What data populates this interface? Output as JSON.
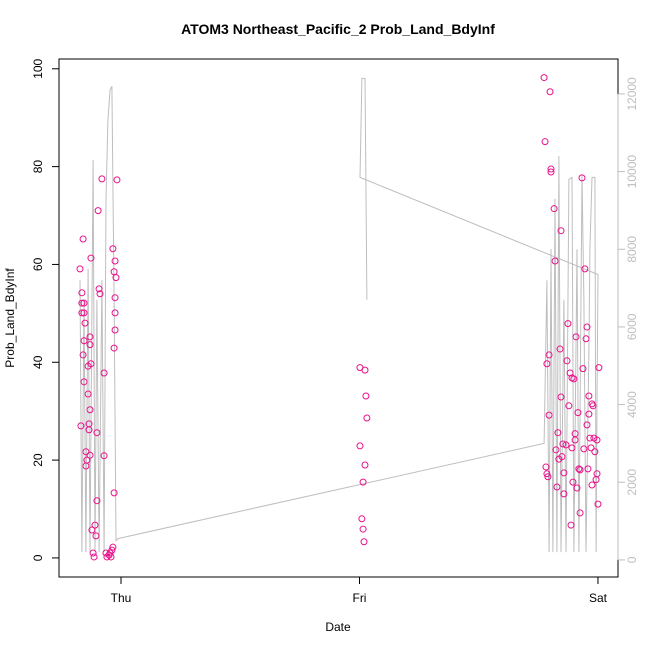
{
  "chart_data": {
    "type": "scatter",
    "title": "ATOM3 Northeast_Pacific_2 Prob_Land_BdyInf",
    "xlabel": "Date",
    "ylabel": "Prob_Land_BdyInf",
    "xlim": [
      -0.26,
      2.084
    ],
    "ylim": [
      -3.9,
      102
    ],
    "y2lim": [
      -440,
      12900
    ],
    "xticks": [
      {
        "value": 0,
        "label": "Thu"
      },
      {
        "value": 1,
        "label": "Fri"
      },
      {
        "value": 2,
        "label": "Sat"
      }
    ],
    "yticks": [
      0,
      20,
      40,
      60,
      80,
      100
    ],
    "y2ticks": [
      0,
      2000,
      4000,
      6000,
      8000,
      10000,
      12000
    ],
    "grid": false,
    "series": [
      {
        "type": "scatter",
        "color": "#e8128c",
        "x": [
          -0.172,
          -0.168,
          -0.164,
          -0.159,
          -0.164,
          -0.155,
          -0.155,
          -0.164,
          -0.159,
          -0.155,
          -0.155,
          -0.151,
          -0.147,
          -0.147,
          -0.143,
          -0.138,
          -0.138,
          -0.134,
          -0.134,
          -0.13,
          -0.13,
          -0.13,
          -0.13,
          -0.126,
          -0.126,
          -0.122,
          -0.117,
          -0.113,
          -0.109,
          -0.105,
          -0.101,
          -0.101,
          -0.096,
          -0.092,
          -0.088,
          -0.08,
          -0.071,
          -0.071,
          -0.063,
          -0.059,
          -0.05,
          -0.046,
          -0.042,
          -0.038,
          -0.034,
          -0.029,
          -0.034,
          -0.025,
          -0.029,
          -0.021,
          -0.025,
          -0.025,
          -0.025,
          -0.029,
          -0.017,
          1.002,
          1.015,
          1.01,
          1.015,
          1.019,
          1.023,
          1.027,
          1.031,
          1.023,
          1.002,
          1.774,
          1.778,
          1.799,
          1.803,
          1.803,
          1.816,
          1.82,
          1.786,
          1.795,
          1.795,
          1.782,
          1.786,
          1.79,
          1.824,
          1.828,
          1.832,
          1.836,
          1.841,
          1.845,
          1.845,
          1.849,
          1.853,
          1.857,
          1.857,
          1.866,
          1.87,
          1.874,
          1.878,
          1.883,
          1.887,
          1.891,
          1.891,
          1.895,
          1.899,
          1.904,
          1.904,
          1.908,
          1.912,
          1.916,
          1.92,
          1.925,
          1.925,
          1.933,
          1.937,
          1.941,
          1.945,
          1.95,
          1.954,
          1.958,
          1.962,
          1.962,
          1.966,
          1.971,
          1.975,
          1.975,
          1.979,
          1.983,
          1.987,
          1.992,
          1.996,
          2.0,
          2.004,
          1.996,
          1.954
        ],
        "values": [
          59.1,
          27,
          54.2,
          65.2,
          52.1,
          52.1,
          50.1,
          50.1,
          41.5,
          44.4,
          36,
          48,
          21.7,
          18.8,
          20,
          39.2,
          33.5,
          26.2,
          27.4,
          30.3,
          21,
          45.2,
          43.6,
          39.7,
          61.3,
          5.7,
          1,
          0.2,
          6.7,
          4.5,
          11.7,
          25.6,
          71,
          55,
          54,
          77.5,
          37.8,
          20.9,
          1,
          0.2,
          0.6,
          1,
          0.2,
          1.6,
          2.2,
          13.3,
          63.2,
          60.7,
          58.5,
          57.3,
          53.2,
          50.1,
          46.6,
          42.9,
          77.3,
          38.9,
          15.5,
          8,
          5.9,
          3.3,
          38.4,
          33.1,
          28.6,
          19,
          22.9,
          98.2,
          85.1,
          95.3,
          79.5,
          78.9,
          71.4,
          60.7,
          39.7,
          41.5,
          29.2,
          18.6,
          17.2,
          16.6,
          22.1,
          14.5,
          25.6,
          20.2,
          42.7,
          66.9,
          32.9,
          20.7,
          23.3,
          17.4,
          13.1,
          23.1,
          40.3,
          47.9,
          31.1,
          37.8,
          6.7,
          36.8,
          22.5,
          15.5,
          36.6,
          25.4,
          24.1,
          45.2,
          14.3,
          29.7,
          18.2,
          9.2,
          18,
          77.7,
          38.7,
          22.3,
          59.1,
          44.8,
          27.2,
          18.2,
          33.1,
          29.4,
          24.5,
          22.5,
          14.9,
          31.5,
          31.1,
          24.5,
          21.7,
          16,
          17.2,
          11,
          38.9,
          24.1,
          47.2
        ]
      },
      {
        "type": "line",
        "axis": "y2",
        "color": "#bebebe",
        "x": [
          -0.172,
          -0.164,
          -0.155,
          -0.147,
          -0.138,
          -0.13,
          -0.117,
          -0.109,
          -0.101,
          -0.092,
          -0.08,
          -0.071,
          -0.063,
          -0.055,
          -0.046,
          -0.038,
          -0.029,
          -0.021,
          -0.013,
          1.774,
          1.786,
          1.795,
          1.803,
          1.811,
          1.82,
          1.828,
          1.836,
          1.845,
          1.857,
          1.866,
          1.878,
          1.891,
          1.899,
          1.912,
          1.92,
          1.933,
          1.941,
          1.95,
          1.962,
          1.966,
          1.975,
          1.987,
          1.992,
          1.996,
          2.0,
          1.002,
          1.01,
          1.023,
          1.031
        ],
        "values": [
          7200,
          200,
          6700,
          200,
          7500,
          200,
          10300,
          200,
          6700,
          200,
          7200,
          200,
          9300,
          11300,
          12100,
          12200,
          6700,
          500,
          550,
          3000,
          7200,
          200,
          8000,
          200,
          9300,
          200,
          10400,
          200,
          6700,
          200,
          9800,
          9850,
          200,
          8000,
          200,
          9900,
          6700,
          200,
          5400,
          8000,
          9850,
          9850,
          200,
          4100,
          7350,
          9850,
          12400,
          12400,
          6700
        ]
      }
    ]
  }
}
